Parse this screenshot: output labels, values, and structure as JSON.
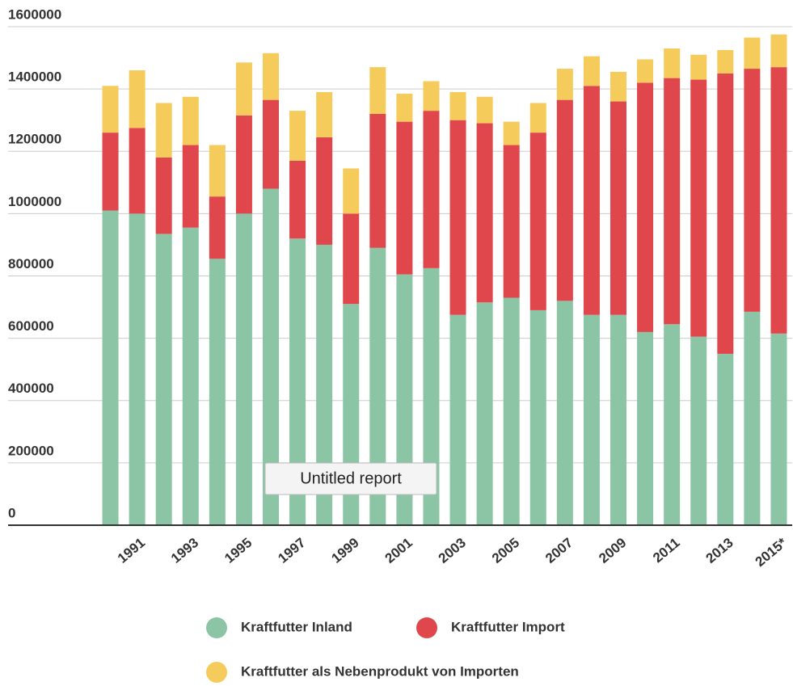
{
  "chart_data": {
    "type": "stacked_bar",
    "categories": [
      null,
      "1991",
      null,
      "1993",
      null,
      "1995",
      null,
      "1997",
      null,
      "1999",
      null,
      "2001",
      null,
      "2003",
      null,
      "2005",
      null,
      "2007",
      null,
      "2009",
      null,
      "2011",
      null,
      "2013",
      null,
      "2015*"
    ],
    "series": [
      {
        "name": "Kraftfutter Inland",
        "color": "#8cc5a5",
        "values": [
          1010000,
          1000000,
          935000,
          955000,
          855000,
          1000000,
          1080000,
          920000,
          900000,
          710000,
          890000,
          805000,
          825000,
          675000,
          715000,
          730000,
          690000,
          720000,
          675000,
          675000,
          620000,
          645000,
          605000,
          550000,
          685000,
          615000
        ]
      },
      {
        "name": "Kraftfutter Import",
        "color": "#e0474c",
        "values": [
          250000,
          275000,
          245000,
          265000,
          200000,
          315000,
          285000,
          250000,
          345000,
          290000,
          430000,
          490000,
          505000,
          625000,
          575000,
          490000,
          570000,
          645000,
          735000,
          685000,
          800000,
          790000,
          825000,
          900000,
          780000,
          855000
        ]
      },
      {
        "name": "Kraftfutter als Nebenprodukt von Importen",
        "color": "#f5cb5c",
        "values": [
          150000,
          185000,
          175000,
          155000,
          165000,
          170000,
          150000,
          160000,
          145000,
          145000,
          150000,
          90000,
          95000,
          90000,
          85000,
          75000,
          95000,
          100000,
          95000,
          95000,
          75000,
          95000,
          80000,
          75000,
          100000,
          105000
        ]
      }
    ],
    "ylim": [
      0,
      1600000
    ],
    "yticks": [
      0,
      200000,
      400000,
      600000,
      800000,
      1000000,
      1200000,
      1400000,
      1600000
    ],
    "grid": true,
    "annotation": "Untitled report"
  }
}
